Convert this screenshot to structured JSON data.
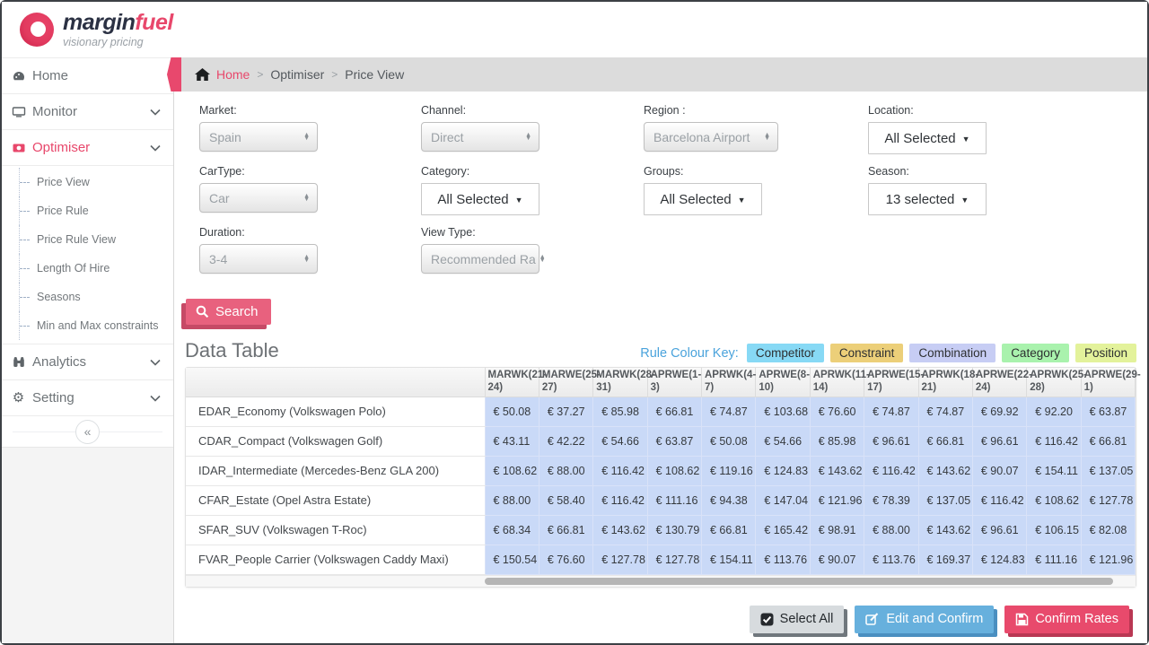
{
  "brand": {
    "name_primary": "margin",
    "name_secondary": "fuel",
    "tagline": "visionary pricing"
  },
  "sidebar": {
    "home": {
      "label": "Home"
    },
    "monitor": {
      "label": "Monitor"
    },
    "optimiser": {
      "label": "Optimiser",
      "children": [
        "Price View",
        "Price Rule",
        "Price Rule View",
        "Length Of Hire",
        "Seasons",
        "Min and Max constraints"
      ]
    },
    "analytics": {
      "label": "Analytics"
    },
    "setting": {
      "label": "Setting"
    },
    "collapse_glyph": "«"
  },
  "breadcrumb": {
    "home": "Home",
    "sep": ">",
    "level2": "Optimiser",
    "level3": "Price View"
  },
  "filters": [
    {
      "label": "Market:",
      "value": "Spain",
      "type": "select"
    },
    {
      "label": "Channel:",
      "value": "Direct",
      "type": "select"
    },
    {
      "label": "Region :",
      "value": "Barcelona Airport",
      "type": "select"
    },
    {
      "label": "Location:",
      "value": "All Selected",
      "type": "multiselect"
    },
    {
      "label": "CarType:",
      "value": "Car",
      "type": "select"
    },
    {
      "label": "Category:",
      "value": "All Selected",
      "type": "multiselect"
    },
    {
      "label": "Groups:",
      "value": "All Selected",
      "type": "multiselect"
    },
    {
      "label": "Season:",
      "value": "13 selected",
      "type": "multiselect"
    },
    {
      "label": "Duration:",
      "value": "3-4",
      "type": "select"
    },
    {
      "label": "View Type:",
      "value": "Recommended Ra",
      "type": "select"
    }
  ],
  "search_button": "Search",
  "section_title": "Data Table",
  "rule_colour_key": {
    "label": "Rule Colour Key:",
    "badges": [
      {
        "label": "Competitor",
        "color": "#87d9f5"
      },
      {
        "label": "Constraint",
        "color": "#eccf79"
      },
      {
        "label": "Combination",
        "color": "#c7cdf4"
      },
      {
        "label": "Category",
        "color": "#a9f2ad"
      },
      {
        "label": "Position",
        "color": "#e3f29b"
      }
    ]
  },
  "table": {
    "columns": [
      "MARWK(21-24)",
      "MARWE(25-27)",
      "MARWK(28-31)",
      "APRWE(1-3)",
      "APRWK(4-7)",
      "APRWE(8-10)",
      "APRWK(11-14)",
      "APRWE(15-17)",
      "APRWK(18-21)",
      "APRWE(22-24)",
      "APRWK(25-28)",
      "APRWE(29-1)"
    ],
    "rows": [
      {
        "label": "EDAR_Economy (Volkswagen Polo)",
        "cells": [
          "€ 50.08",
          "€ 37.27",
          "€ 85.98",
          "€ 66.81",
          "€ 74.87",
          "€ 103.68",
          "€ 76.60",
          "€ 74.87",
          "€ 74.87",
          "€ 69.92",
          "€ 92.20",
          "€ 63.87"
        ]
      },
      {
        "label": "CDAR_Compact (Volkswagen Golf)",
        "cells": [
          "€ 43.11",
          "€ 42.22",
          "€ 54.66",
          "€ 63.87",
          "€ 50.08",
          "€ 54.66",
          "€ 85.98",
          "€ 96.61",
          "€ 66.81",
          "€ 96.61",
          "€ 116.42",
          "€ 66.81"
        ]
      },
      {
        "label": "IDAR_Intermediate (Mercedes-Benz GLA 200)",
        "cells": [
          "€ 108.62",
          "€ 88.00",
          "€ 116.42",
          "€ 108.62",
          "€ 119.16",
          "€ 124.83",
          "€ 143.62",
          "€ 116.42",
          "€ 143.62",
          "€ 90.07",
          "€ 154.11",
          "€ 137.05"
        ]
      },
      {
        "label": "CFAR_Estate (Opel Astra Estate)",
        "cells": [
          "€ 88.00",
          "€ 58.40",
          "€ 116.42",
          "€ 111.16",
          "€ 94.38",
          "€ 147.04",
          "€ 121.96",
          "€ 78.39",
          "€ 137.05",
          "€ 116.42",
          "€ 108.62",
          "€ 127.78"
        ]
      },
      {
        "label": "SFAR_SUV (Volkswagen T-Roc)",
        "cells": [
          "€ 68.34",
          "€ 66.81",
          "€ 143.62",
          "€ 130.79",
          "€ 66.81",
          "€ 165.42",
          "€ 98.91",
          "€ 88.00",
          "€ 143.62",
          "€ 96.61",
          "€ 106.15",
          "€ 82.08"
        ]
      },
      {
        "label": "FVAR_People Carrier (Volkswagen Caddy Maxi)",
        "cells": [
          "€ 150.54",
          "€ 76.60",
          "€ 127.78",
          "€ 127.78",
          "€ 154.11",
          "€ 113.76",
          "€ 90.07",
          "€ 113.76",
          "€ 169.37",
          "€ 124.83",
          "€ 111.16",
          "€ 121.96"
        ]
      }
    ]
  },
  "footer": {
    "select_all": "Select All",
    "edit_confirm": "Edit and Confirm",
    "confirm_rates": "Confirm Rates"
  }
}
